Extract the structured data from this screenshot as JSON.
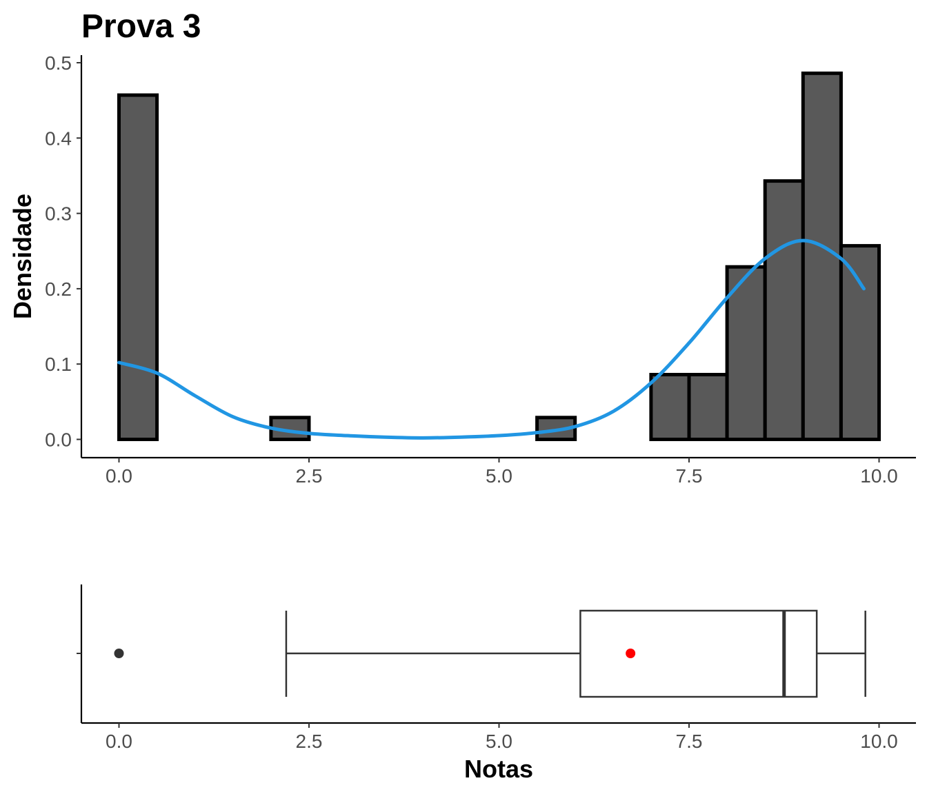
{
  "chart_data": [
    {
      "type": "bar",
      "subtype": "histogram",
      "title": "Prova 3",
      "xlabel": "",
      "ylabel": "Densidade",
      "xlim": [
        -0.5,
        10.5
      ],
      "ylim": [
        0,
        0.5
      ],
      "x_ticks": [
        0,
        2.5,
        5,
        7.5,
        10
      ],
      "x_tick_labels": [
        "0.0",
        "2.5",
        "5.0",
        "7.5",
        "10.0"
      ],
      "y_ticks": [
        0,
        0.1,
        0.2,
        0.3,
        0.4,
        0.5
      ],
      "y_tick_labels": [
        "0.0",
        "0.1",
        "0.2",
        "0.3",
        "0.4",
        "0.5"
      ],
      "bin_width": 0.5,
      "bins": [
        {
          "start": 0.0,
          "value": 0.457
        },
        {
          "start": 0.5,
          "value": 0
        },
        {
          "start": 1.0,
          "value": 0
        },
        {
          "start": 1.5,
          "value": 0
        },
        {
          "start": 2.0,
          "value": 0.029
        },
        {
          "start": 2.5,
          "value": 0
        },
        {
          "start": 3.0,
          "value": 0
        },
        {
          "start": 3.5,
          "value": 0
        },
        {
          "start": 4.0,
          "value": 0
        },
        {
          "start": 4.5,
          "value": 0
        },
        {
          "start": 5.0,
          "value": 0
        },
        {
          "start": 5.5,
          "value": 0.029
        },
        {
          "start": 6.0,
          "value": 0
        },
        {
          "start": 6.5,
          "value": 0
        },
        {
          "start": 7.0,
          "value": 0.086
        },
        {
          "start": 7.5,
          "value": 0.086
        },
        {
          "start": 8.0,
          "value": 0.229
        },
        {
          "start": 8.5,
          "value": 0.343
        },
        {
          "start": 9.0,
          "value": 0.486
        },
        {
          "start": 9.5,
          "value": 0.257
        }
      ],
      "density_curve": {
        "color": "#2196e3",
        "x": [
          0,
          0.5,
          1,
          1.5,
          2,
          2.5,
          3,
          3.5,
          4,
          4.5,
          5,
          5.5,
          6,
          6.5,
          7,
          7.5,
          8,
          8.5,
          9,
          9.5,
          9.8
        ],
        "y": [
          0.102,
          0.088,
          0.058,
          0.03,
          0.015,
          0.008,
          0.005,
          0.003,
          0.002,
          0.003,
          0.005,
          0.009,
          0.017,
          0.037,
          0.075,
          0.128,
          0.188,
          0.24,
          0.264,
          0.24,
          0.2
        ]
      }
    },
    {
      "type": "boxplot",
      "xlabel": "Notas",
      "xlim": [
        -0.5,
        10.5
      ],
      "x_ticks": [
        0,
        2.5,
        5,
        7.5,
        10
      ],
      "x_tick_labels": [
        "0.0",
        "2.5",
        "5.0",
        "7.5",
        "10.0"
      ],
      "whisker_low": 2.2,
      "q1": 6.07,
      "median": 8.75,
      "q3": 9.18,
      "whisker_high": 9.82,
      "mean": 6.73,
      "mean_color": "#ff0000",
      "outliers": [
        0
      ]
    }
  ]
}
